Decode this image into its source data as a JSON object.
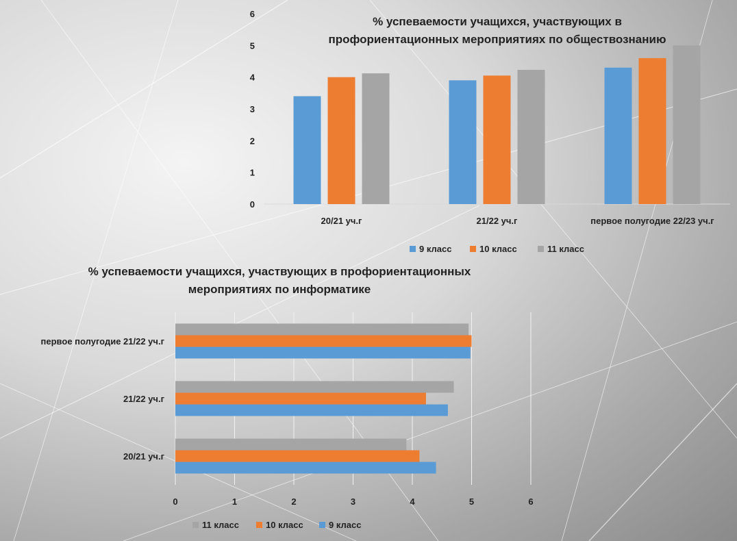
{
  "chart_data": [
    {
      "type": "bar",
      "orientation": "vertical",
      "title_lines": [
        "% успеваемости учащихся, участвующих в",
        "профориентационных мероприятиях по обществознанию"
      ],
      "categories": [
        "20/21 уч.г",
        "21/22 уч.г",
        "первое полугодие 22/23 уч.г"
      ],
      "series": [
        {
          "name": "9 класс",
          "color": "#5b9bd5",
          "values": [
            3.4,
            3.9,
            4.3
          ]
        },
        {
          "name": "10 класс",
          "color": "#ed7d31",
          "values": [
            4.0,
            4.05,
            4.6
          ]
        },
        {
          "name": "11 класс",
          "color": "#a5a5a5",
          "values": [
            4.12,
            4.23,
            5.0
          ]
        }
      ],
      "ylim": [
        0,
        6
      ],
      "yticks": [
        "0",
        "1",
        "2",
        "3",
        "4",
        "5",
        "6"
      ],
      "legend": "bottom",
      "grid": false
    },
    {
      "type": "bar",
      "orientation": "horizontal",
      "title_lines": [
        "% успеваемости учащихся, участвующих в профориентационных",
        "мероприятиях по информатике"
      ],
      "categories": [
        "20/21 уч.г",
        "21/22 уч.г",
        "первое полугодие 21/22 уч.г"
      ],
      "series": [
        {
          "name": "9 класс",
          "color": "#5b9bd5",
          "values": [
            4.4,
            4.6,
            4.98
          ]
        },
        {
          "name": "10 класс",
          "color": "#ed7d31",
          "values": [
            4.12,
            4.23,
            5.0
          ]
        },
        {
          "name": "11 класс",
          "color": "#a5a5a5",
          "values": [
            3.9,
            4.7,
            4.95
          ]
        }
      ],
      "xlim": [
        0,
        6
      ],
      "xticks": [
        "0",
        "1",
        "2",
        "3",
        "4",
        "5",
        "6"
      ],
      "legend": "bottom",
      "legend_order": [
        "11 класс",
        "10 класс",
        "9 класс"
      ],
      "grid": true
    }
  ]
}
